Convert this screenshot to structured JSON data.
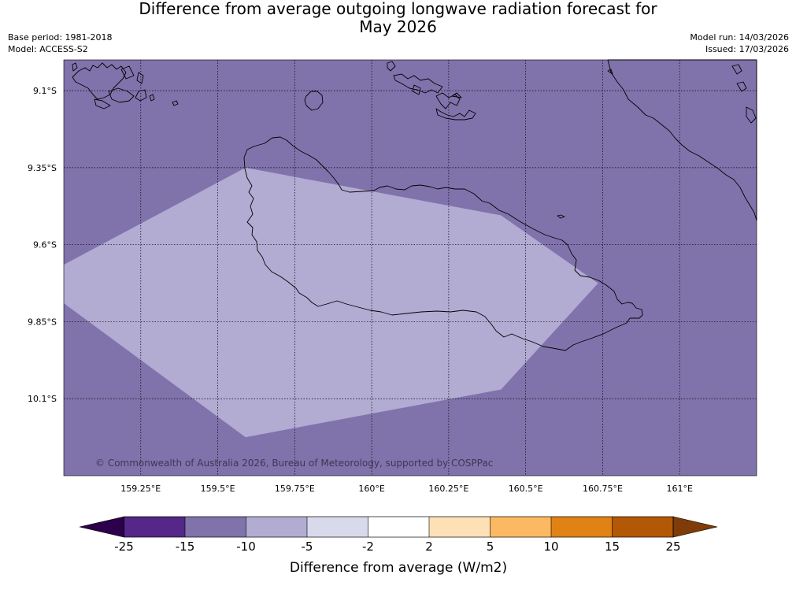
{
  "header": {
    "title_line1": "Difference from average outgoing longwave radiation forecast for",
    "title_line2": "May 2026",
    "base_period": "Base period: 1981-2018",
    "model": "Model: ACCESS-S2",
    "model_run": "Model run: 14/03/2026",
    "issued": "Issued: 17/03/2026"
  },
  "map": {
    "copyright": "© Commonwealth of Australia 2026, Bureau of Meteorology, supported by COSPPac",
    "lon_labels": [
      "159.25°E",
      "159.5°E",
      "159.75°E",
      "160°E",
      "160.25°E",
      "160.5°E",
      "160.75°E",
      "161°E"
    ],
    "lat_labels": [
      "9.1°S",
      "9.35°S",
      "9.6°S",
      "9.85°S",
      "10.1°S"
    ]
  },
  "colorbar": {
    "label": "Difference from average (W/m2)",
    "ticks": [
      "-25",
      "-15",
      "-10",
      "-5",
      "-2",
      "2",
      "5",
      "10",
      "15",
      "25"
    ],
    "colors": [
      "#2d004b",
      "#542788",
      "#8073ac",
      "#b2abd2",
      "#d8daeb",
      "#ffffff",
      "#fee0b6",
      "#fdb863",
      "#e08214",
      "#b35806",
      "#7f3b08"
    ]
  },
  "chart_data": {
    "type": "filled_contour_map",
    "title": "Difference from average outgoing longwave radiation forecast for May 2026",
    "variable": "Difference from average (W/m2)",
    "lon_range": [
      159.0,
      161.25
    ],
    "lat_range": [
      -10.35,
      -9.0
    ],
    "lon_ticks": [
      159.25,
      159.5,
      159.75,
      160.0,
      160.25,
      160.5,
      160.75,
      161.0
    ],
    "lat_ticks": [
      -9.1,
      -9.35,
      -9.6,
      -9.85,
      -10.1
    ],
    "levels": [
      -25,
      -15,
      -10,
      -5,
      -2,
      2,
      5,
      10,
      15,
      25
    ],
    "extend": "both",
    "background_class": "-15 to -10",
    "regions": [
      {
        "class": "-10 to -5",
        "polygon_lonlat": [
          [
            159.0,
            -9.665
          ],
          [
            159.59,
            -9.35
          ],
          [
            160.42,
            -9.505
          ],
          [
            160.735,
            -9.725
          ],
          [
            160.42,
            -10.07
          ],
          [
            159.59,
            -10.225
          ],
          [
            159.0,
            -9.79
          ]
        ]
      }
    ],
    "grid": true
  }
}
